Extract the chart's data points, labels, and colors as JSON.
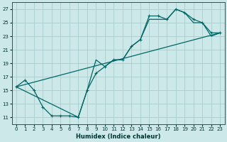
{
  "xlabel": "Humidex (Indice chaleur)",
  "bg_color": "#cce8e8",
  "line_color": "#006666",
  "grid_color": "#aacccc",
  "xlim": [
    -0.5,
    23.5
  ],
  "ylim": [
    10.0,
    28.0
  ],
  "xticks": [
    0,
    1,
    2,
    3,
    4,
    5,
    6,
    7,
    8,
    9,
    10,
    11,
    12,
    13,
    14,
    15,
    16,
    17,
    18,
    19,
    20,
    21,
    22,
    23
  ],
  "yticks": [
    11,
    13,
    15,
    17,
    19,
    21,
    23,
    25,
    27
  ],
  "line1_x": [
    0,
    1,
    2,
    3,
    4,
    5,
    6,
    7,
    8,
    9,
    10,
    11,
    12,
    13,
    14,
    15,
    16,
    17,
    18,
    19,
    20,
    21,
    22,
    23
  ],
  "line1_y": [
    15.5,
    16.5,
    15.0,
    12.5,
    11.2,
    11.2,
    11.2,
    11.0,
    15.0,
    17.5,
    18.5,
    19.5,
    19.5,
    21.5,
    22.5,
    26.0,
    26.0,
    25.5,
    27.0,
    26.5,
    25.5,
    25.0,
    23.5,
    23.5
  ],
  "line2_x": [
    0,
    23
  ],
  "line2_y": [
    15.5,
    23.5
  ],
  "line3_x": [
    0,
    7,
    8,
    9,
    10,
    11,
    12,
    13,
    14,
    15,
    16,
    17,
    18,
    19,
    20,
    21,
    22,
    23
  ],
  "line3_y": [
    15.5,
    11.0,
    15.0,
    19.5,
    18.5,
    19.5,
    19.5,
    21.5,
    22.5,
    25.5,
    25.5,
    25.5,
    27.0,
    26.5,
    25.0,
    25.0,
    23.0,
    23.5
  ]
}
